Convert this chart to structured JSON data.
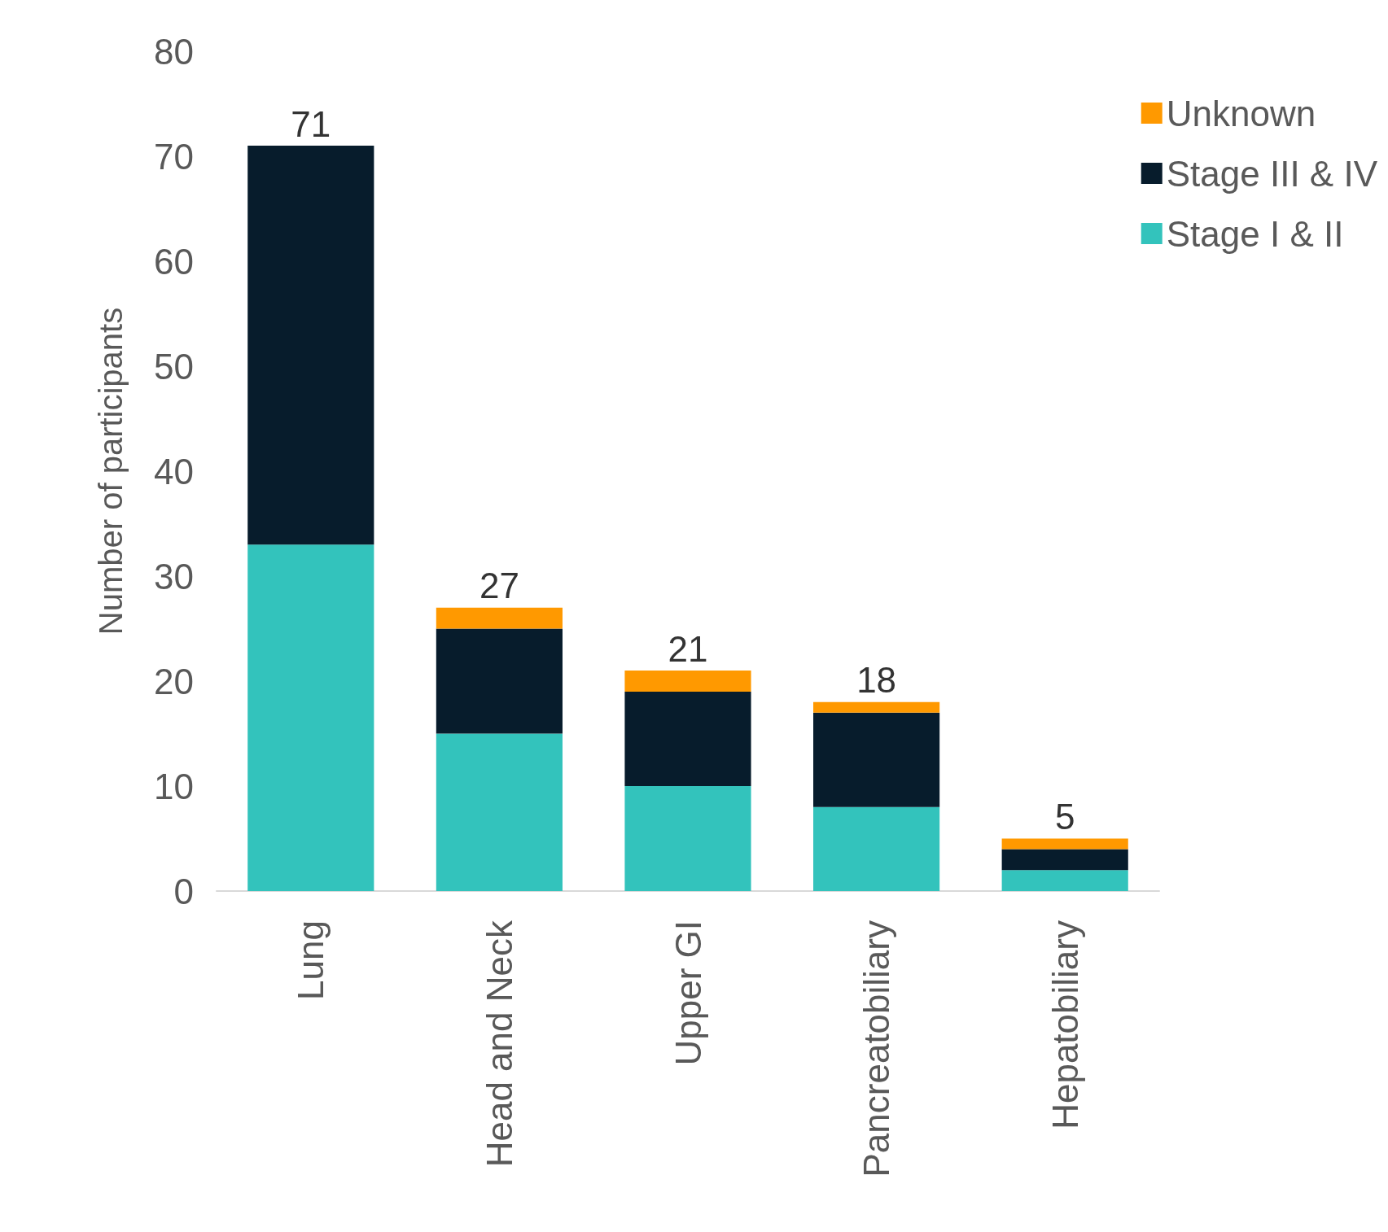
{
  "chart_data": {
    "type": "bar",
    "ylabel": "Number of participants",
    "categories": [
      "Lung",
      "Head and Neck",
      "Upper GI",
      "Pancreatobiliary",
      "Hepatobiliary"
    ],
    "stacked": true,
    "series": [
      {
        "name": "Stage I & II",
        "color": "#33c3bc",
        "values": [
          33,
          15,
          10,
          8,
          2
        ]
      },
      {
        "name": "Stage III & IV",
        "color": "#071c2c",
        "values": [
          38,
          10,
          9,
          9,
          2
        ]
      },
      {
        "name": "Unknown",
        "color": "#ff9900",
        "values": [
          0,
          2,
          2,
          1,
          1
        ]
      }
    ],
    "totals": [
      "71",
      "27",
      "21",
      "18",
      "5"
    ],
    "ylim": [
      0,
      80
    ],
    "yticks": [
      0,
      10,
      20,
      30,
      40,
      50,
      60,
      70,
      80
    ],
    "grid": false,
    "legend": "top right"
  }
}
